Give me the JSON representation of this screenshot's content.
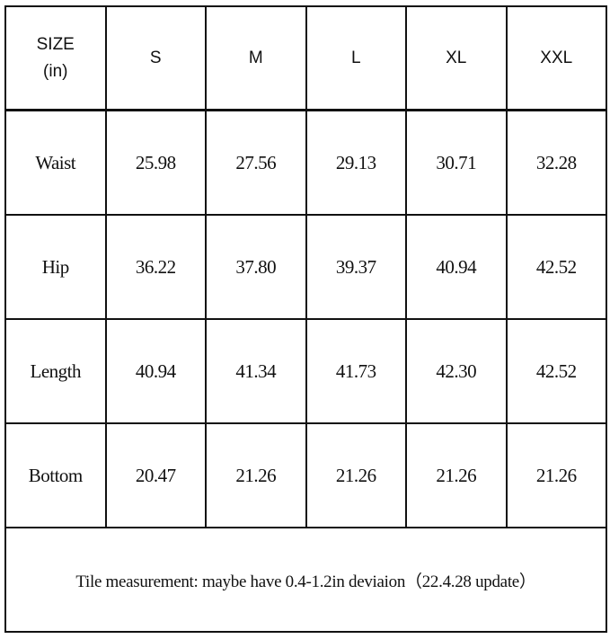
{
  "table": {
    "header_label": [
      "SIZE",
      "(in)"
    ],
    "sizes": [
      "S",
      "M",
      "L",
      "XL",
      "XXL"
    ],
    "rows": [
      {
        "label": "Waist",
        "values": [
          "25.98",
          "27.56",
          "29.13",
          "30.71",
          "32.28"
        ]
      },
      {
        "label": "Hip",
        "values": [
          "36.22",
          "37.80",
          "39.37",
          "40.94",
          "42.52"
        ]
      },
      {
        "label": "Length",
        "values": [
          "40.94",
          "41.34",
          "41.73",
          "42.30",
          "42.52"
        ]
      },
      {
        "label": "Bottom",
        "values": [
          "20.47",
          "21.26",
          "21.26",
          "21.26",
          "21.26"
        ]
      }
    ],
    "note": "Tile measurement: maybe have 0.4-1.2in deviaion（22.4.28 update）"
  }
}
